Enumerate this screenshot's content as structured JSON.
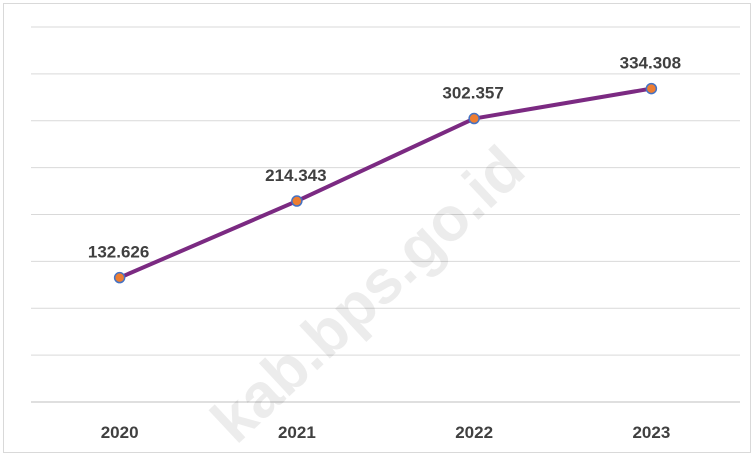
{
  "chart_data": {
    "type": "line",
    "categories": [
      "2020",
      "2021",
      "2022",
      "2023"
    ],
    "series": [
      {
        "values": [
          132.626,
          214.343,
          302.357,
          334.308
        ],
        "labels": [
          "132.626",
          "214.343",
          "302.357",
          "334.308"
        ],
        "line_color": "#7b2a82",
        "marker_color": "#ed7d31",
        "marker_edge_color": "#4472c4"
      }
    ],
    "ylim": [
      0,
      400
    ],
    "grid": true,
    "legend": "none",
    "watermark": "kab.bps.go.id",
    "gridline_color": "#d9d9d9"
  }
}
